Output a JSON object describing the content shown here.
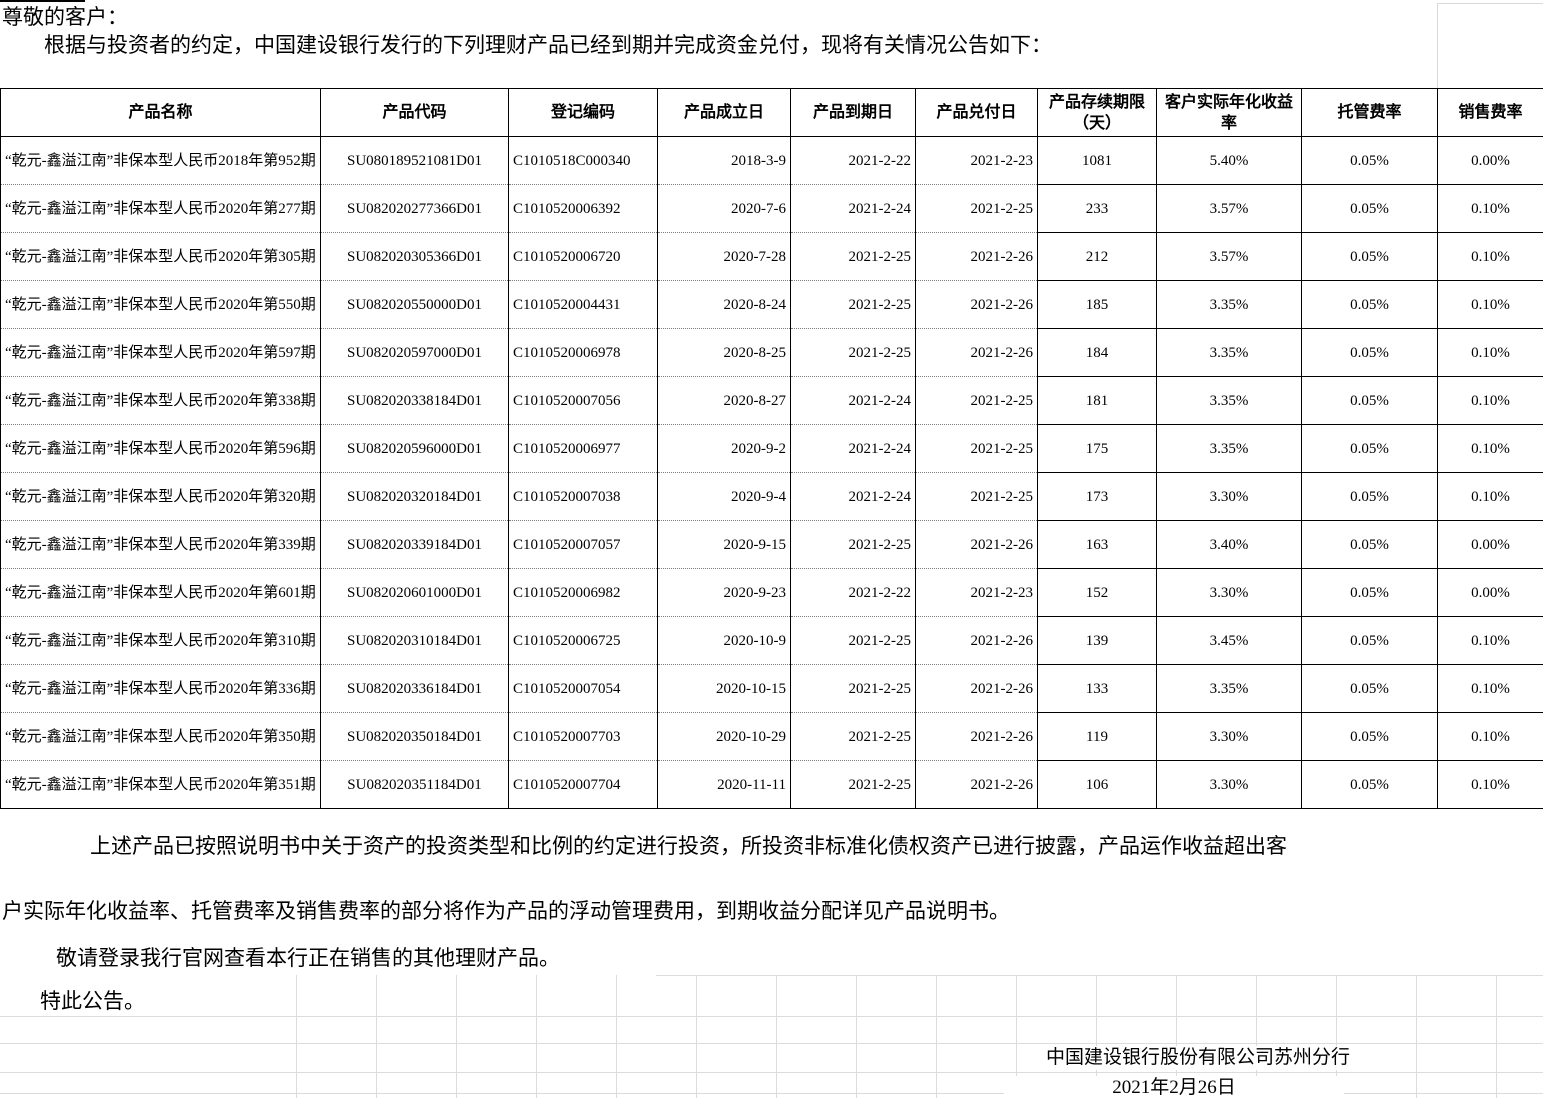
{
  "intro": {
    "salutation": "尊敬的客户：",
    "body": "根据与投资者的约定，中国建设银行发行的下列理财产品已经到期并完成资金兑付，现将有关情况公告如下："
  },
  "table": {
    "headers": [
      "产品名称",
      "产品代码",
      "登记编码",
      "产品成立日",
      "产品到期日",
      "产品兑付日",
      "产品存续期限（天）",
      "客户实际年化收益率",
      "托管费率",
      "销售费率"
    ],
    "rows": [
      [
        "“乾元-鑫溢江南”非保本型人民币2018年第952期",
        "SU080189521081D01",
        "C1010518C000340",
        "2018-3-9",
        "2021-2-22",
        "2021-2-23",
        "1081",
        "5.40%",
        "0.05%",
        "0.00%"
      ],
      [
        "“乾元-鑫溢江南”非保本型人民币2020年第277期",
        "SU082020277366D01",
        "C1010520006392",
        "2020-7-6",
        "2021-2-24",
        "2021-2-25",
        "233",
        "3.57%",
        "0.05%",
        "0.10%"
      ],
      [
        "“乾元-鑫溢江南”非保本型人民币2020年第305期",
        "SU082020305366D01",
        "C1010520006720",
        "2020-7-28",
        "2021-2-25",
        "2021-2-26",
        "212",
        "3.57%",
        "0.05%",
        "0.10%"
      ],
      [
        "“乾元-鑫溢江南”非保本型人民币2020年第550期",
        "SU082020550000D01",
        "C1010520004431",
        "2020-8-24",
        "2021-2-25",
        "2021-2-26",
        "185",
        "3.35%",
        "0.05%",
        "0.10%"
      ],
      [
        "“乾元-鑫溢江南”非保本型人民币2020年第597期",
        "SU082020597000D01",
        "C1010520006978",
        "2020-8-25",
        "2021-2-25",
        "2021-2-26",
        "184",
        "3.35%",
        "0.05%",
        "0.10%"
      ],
      [
        "“乾元-鑫溢江南”非保本型人民币2020年第338期",
        "SU082020338184D01",
        "C1010520007056",
        "2020-8-27",
        "2021-2-24",
        "2021-2-25",
        "181",
        "3.35%",
        "0.05%",
        "0.10%"
      ],
      [
        "“乾元-鑫溢江南”非保本型人民币2020年第596期",
        "SU082020596000D01",
        "C1010520006977",
        "2020-9-2",
        "2021-2-24",
        "2021-2-25",
        "175",
        "3.35%",
        "0.05%",
        "0.10%"
      ],
      [
        "“乾元-鑫溢江南”非保本型人民币2020年第320期",
        "SU082020320184D01",
        "C1010520007038",
        "2020-9-4",
        "2021-2-24",
        "2021-2-25",
        "173",
        "3.30%",
        "0.05%",
        "0.10%"
      ],
      [
        "“乾元-鑫溢江南”非保本型人民币2020年第339期",
        "SU082020339184D01",
        "C1010520007057",
        "2020-9-15",
        "2021-2-25",
        "2021-2-26",
        "163",
        "3.40%",
        "0.05%",
        "0.00%"
      ],
      [
        "“乾元-鑫溢江南”非保本型人民币2020年第601期",
        "SU082020601000D01",
        "C1010520006982",
        "2020-9-23",
        "2021-2-22",
        "2021-2-23",
        "152",
        "3.30%",
        "0.05%",
        "0.00%"
      ],
      [
        "“乾元-鑫溢江南”非保本型人民币2020年第310期",
        "SU082020310184D01",
        "C1010520006725",
        "2020-10-9",
        "2021-2-25",
        "2021-2-26",
        "139",
        "3.45%",
        "0.05%",
        "0.10%"
      ],
      [
        "“乾元-鑫溢江南”非保本型人民币2020年第336期",
        "SU082020336184D01",
        "C1010520007054",
        "2020-10-15",
        "2021-2-25",
        "2021-2-26",
        "133",
        "3.35%",
        "0.05%",
        "0.10%"
      ],
      [
        "“乾元-鑫溢江南”非保本型人民币2020年第350期",
        "SU082020350184D01",
        "C1010520007703",
        "2020-10-29",
        "2021-2-25",
        "2021-2-26",
        "119",
        "3.30%",
        "0.05%",
        "0.10%"
      ],
      [
        "“乾元-鑫溢江南”非保本型人民币2020年第351期",
        "SU082020351184D01",
        "C1010520007704",
        "2020-11-11",
        "2021-2-25",
        "2021-2-26",
        "106",
        "3.30%",
        "0.05%",
        "0.10%"
      ]
    ]
  },
  "footer": {
    "para1_line1": "上述产品已按照说明书中关于资产的投资类型和比例的约定进行投资，所投资非标准化债权资产已进行披露，产品运作收益超出客",
    "para1_line2": "户实际年化收益率、托管费率及销售费率的部分将作为产品的浮动管理费用，到期收益分配详见产品说明书。",
    "para2": "敬请登录我行官网查看本行正在销售的其他理财产品。",
    "para3": "特此公告。",
    "signer": "中国建设银行股份有限公司苏州分行",
    "date": "2021年2月26日"
  },
  "colors": {
    "text": "#000000",
    "table_border": "#000000",
    "hairline": "#7c7c7c",
    "faint_grid": "#dcdcdc",
    "background": "#ffffff"
  }
}
